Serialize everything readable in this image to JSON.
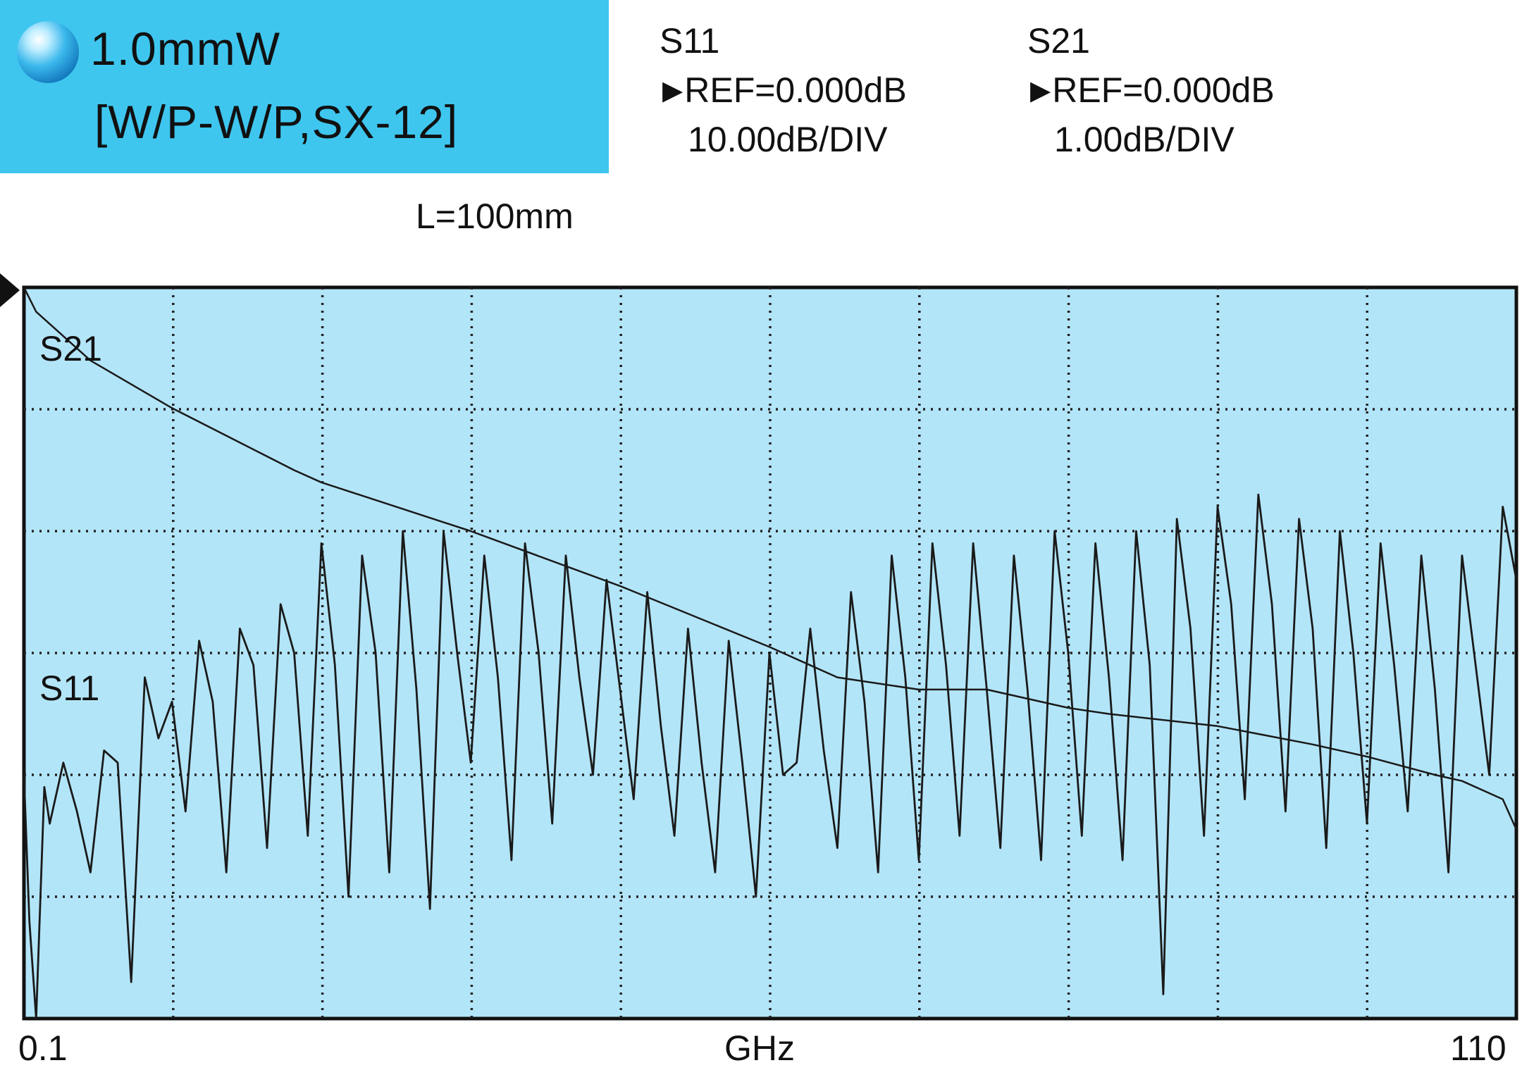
{
  "header": {
    "power": "1.0mmW",
    "configuration": "[W/P-W/P,SX-12]"
  },
  "s11_panel": {
    "name": "S11",
    "ref": "REF=0.000dB",
    "scale": "10.00dB/DIV"
  },
  "s21_panel": {
    "name": "S21",
    "ref": "REF=0.000dB",
    "scale": "1.00dB/DIV"
  },
  "length": "L=100mm",
  "colors": {
    "title_background": "#3ec6ef",
    "plot_background": "#b3e5f8",
    "trace": "#1a1a1a",
    "grid": "#222222"
  },
  "chart_data": {
    "type": "line",
    "xlabel": "GHz",
    "x_tick_labels": [
      "0.1",
      "110"
    ],
    "xlim": [
      0.1,
      110
    ],
    "grid": true,
    "grid_divisions": {
      "x": 10,
      "y": 6
    },
    "series": [
      {
        "name": "S21",
        "reference_db": 0.0,
        "scale_db_per_div": 1.0,
        "x": [
          0.1,
          1,
          5,
          11,
          20,
          22,
          33,
          44,
          55,
          60,
          66,
          71,
          77,
          80,
          88,
          95,
          99,
          104,
          106,
          108,
          109,
          110
        ],
        "y": [
          0.0,
          -0.2,
          -0.6,
          -0.99,
          -1.5,
          -1.6,
          -2.0,
          -2.45,
          -2.95,
          -3.2,
          -3.3,
          -3.3,
          -3.45,
          -3.5,
          -3.6,
          -3.75,
          -3.85,
          -4.0,
          -4.05,
          -4.15,
          -4.2,
          -4.45
        ]
      },
      {
        "name": "S11",
        "reference_db": 0.0,
        "scale_db_per_div": 10.0,
        "x": [
          0.1,
          0.5,
          1.0,
          1.6,
          2,
          3,
          4,
          5,
          6,
          7,
          8,
          9,
          10,
          11,
          12,
          13,
          14,
          15,
          16,
          17,
          18,
          19,
          20,
          21,
          22,
          23,
          24,
          25,
          26,
          27,
          28,
          29,
          30,
          31,
          32,
          33,
          34,
          35,
          36,
          37,
          38,
          39,
          40,
          41,
          42,
          43,
          44,
          45,
          46,
          47,
          48,
          49,
          50,
          51,
          52,
          53,
          54,
          55,
          56,
          57,
          58,
          59,
          60,
          61,
          62,
          63,
          64,
          65,
          66,
          67,
          68,
          69,
          70,
          71,
          72,
          73,
          74,
          75,
          76,
          77,
          78,
          79,
          80,
          81,
          82,
          83,
          84,
          85,
          86,
          87,
          88,
          89,
          90,
          91,
          92,
          93,
          94,
          95,
          96,
          97,
          98,
          99,
          100,
          101,
          102,
          103,
          104,
          105,
          106,
          107,
          108,
          109,
          110
        ],
        "y": [
          -40,
          -52,
          -60,
          -41,
          -44,
          -39,
          -43,
          -48,
          -38,
          -39,
          -57,
          -32,
          -37,
          -34,
          -43,
          -29,
          -34,
          -48,
          -28,
          -31,
          -46,
          -26,
          -30,
          -45,
          -21,
          -31,
          -50,
          -22,
          -30,
          -48,
          -20,
          -33,
          -51,
          -20,
          -30,
          -39,
          -22,
          -32,
          -47,
          -21,
          -30,
          -44,
          -22,
          -32,
          -40,
          -24,
          -33,
          -42,
          -25,
          -36,
          -45,
          -28,
          -39,
          -48,
          -29,
          -39,
          -50,
          -30,
          -40,
          -39,
          -28,
          -38,
          -46,
          -25,
          -34,
          -48,
          -22,
          -32,
          -47,
          -21,
          -31,
          -45,
          -21,
          -33,
          -46,
          -22,
          -33,
          -47,
          -20,
          -30,
          -45,
          -21,
          -32,
          -47,
          -20,
          -31,
          -58,
          -19,
          -28,
          -45,
          -18,
          -26,
          -42,
          -17,
          -26,
          -43,
          -19,
          -28,
          -46,
          -20,
          -30,
          -44,
          -21,
          -31,
          -43,
          -22,
          -33,
          -48,
          -22,
          -31,
          -40,
          -18,
          -24
        ]
      }
    ]
  }
}
